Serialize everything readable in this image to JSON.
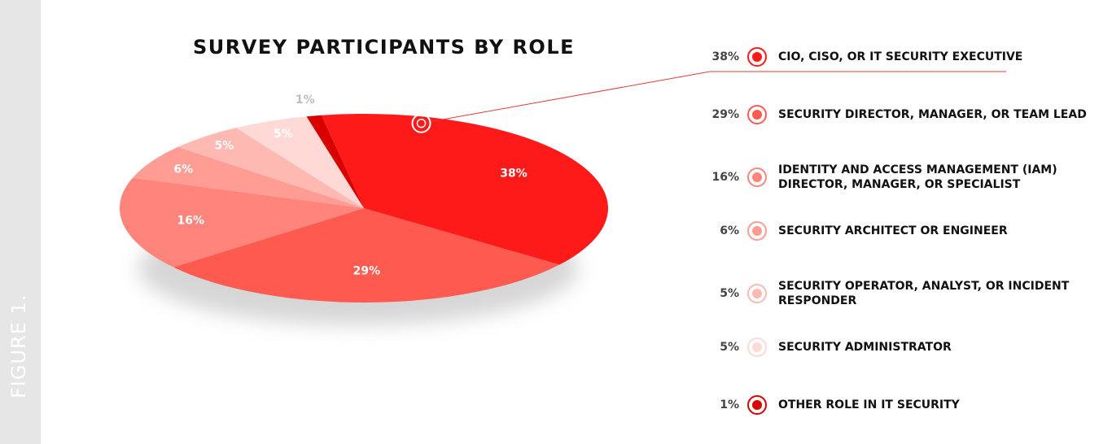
{
  "side_label": "FIGURE 1.",
  "chart_data": {
    "type": "pie",
    "title": "SURVEY PARTICIPANTS BY ROLE",
    "legend_placement": "right",
    "slices": [
      {
        "label": "CIO, CISO, OR IT SECURITY EXECUTIVE",
        "value": 38,
        "value_label": "38%",
        "color": "#ff1a1a"
      },
      {
        "label": "SECURITY DIRECTOR, MANAGER, OR TEAM LEAD",
        "value": 29,
        "value_label": "29%",
        "color": "#ff5a4f"
      },
      {
        "label": "IDENTITY AND ACCESS MANAGEMENT (IAM) DIRECTOR, MANAGER, OR SPECIALIST",
        "value": 16,
        "value_label": "16%",
        "color": "#ff857c"
      },
      {
        "label": "SECURITY ARCHITECT OR ENGINEER",
        "value": 6,
        "value_label": "6%",
        "color": "#ff9c93"
      },
      {
        "label": "SECURITY OPERATOR, ANALYST, OR INCIDENT RESPONDER",
        "value": 5,
        "value_label": "5%",
        "color": "#ffb9b3"
      },
      {
        "label": "SECURITY ADMINISTRATOR",
        "value": 5,
        "value_label": "5%",
        "color": "#ffd9d6"
      },
      {
        "label": "OTHER ROLE IN IT SECURITY",
        "value": 1,
        "value_label": "1%",
        "color": "#d90000"
      }
    ]
  }
}
